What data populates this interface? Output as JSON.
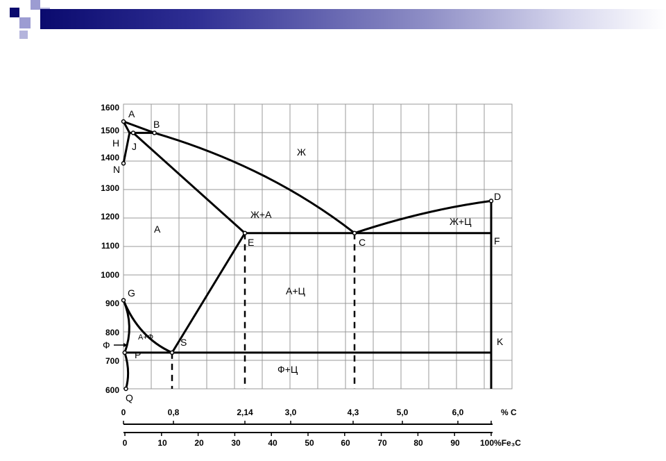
{
  "chart_data": {
    "type": "diagram",
    "y_axis": {
      "ticks": [
        "1600",
        "1500",
        "1400",
        "1300",
        "1200",
        "1100",
        "1000",
        "900",
        "800",
        "700",
        "600"
      ]
    },
    "x_axis_carbon": {
      "ticks": [
        "0",
        "0,8",
        "2,14",
        "3,0",
        "4,3",
        "5,0",
        "6,0"
      ],
      "unit": "% C"
    },
    "x_axis_fe3c": {
      "ticks": [
        "0",
        "10",
        "20",
        "30",
        "40",
        "50",
        "60",
        "70",
        "80",
        "90",
        "100%Fe₃C"
      ]
    },
    "points": {
      "A": "A",
      "B": "B",
      "H": "H",
      "J": "J",
      "N": "N",
      "D": "D",
      "E": "E",
      "C": "C",
      "F": "F",
      "G": "G",
      "S": "S",
      "P": "P",
      "K": "K",
      "Q": "Q"
    },
    "regions": {
      "liquid": "Ж",
      "liquid_austenite": "Ж+А",
      "liquid_cementite": "Ж+Ц",
      "austenite": "А",
      "austenite_cementite": "А+Ц",
      "austenite_ferrite": "А+Ф",
      "ferrite_cementite": "Ф+Ц",
      "ferrite_arrow": "Ф"
    },
    "lines": [
      {
        "name": "AB",
        "x": [
          0,
          0.51
        ],
        "y": [
          1539,
          1499
        ]
      },
      {
        "name": "BC",
        "x": [
          0.51,
          4.3
        ],
        "y": [
          1499,
          1147
        ]
      },
      {
        "name": "CD",
        "x": [
          4.3,
          6.67
        ],
        "y": [
          1147,
          1260
        ]
      },
      {
        "name": "HJB",
        "x": [
          0.1,
          0.51
        ],
        "y": [
          1499,
          1499
        ]
      },
      {
        "name": "AH",
        "x": [
          0,
          0.1
        ],
        "y": [
          1539,
          1499
        ]
      },
      {
        "name": "NH",
        "x": [
          0,
          0.1
        ],
        "y": [
          1392,
          1499
        ]
      },
      {
        "name": "JE",
        "x": [
          0.16,
          2.14
        ],
        "y": [
          1499,
          1147
        ]
      },
      {
        "name": "ECF",
        "x": [
          2.14,
          6.67
        ],
        "y": [
          1147,
          1147
        ]
      },
      {
        "name": "DFK",
        "x": [
          6.67,
          6.67
        ],
        "y": [
          1260,
          600
        ]
      },
      {
        "name": "GS",
        "x": [
          0,
          0.8
        ],
        "y": [
          911,
          727
        ]
      },
      {
        "name": "ES",
        "x": [
          2.14,
          0.8
        ],
        "y": [
          1147,
          727
        ]
      },
      {
        "name": "PSK",
        "x": [
          0.02,
          6.67
        ],
        "y": [
          727,
          727
        ]
      },
      {
        "name": "GP",
        "x": [
          0,
          0.02
        ],
        "y": [
          911,
          727
        ]
      },
      {
        "name": "PQ",
        "x": [
          0.02,
          0.01
        ],
        "y": [
          727,
          600
        ]
      }
    ],
    "colors": {
      "grid": "#999999",
      "line": "#000000",
      "banner_dark": "#0a0a6e"
    }
  }
}
